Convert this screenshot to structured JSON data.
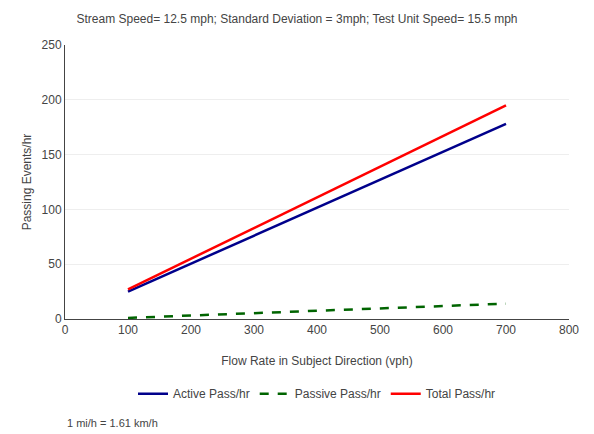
{
  "chart_data": {
    "type": "line",
    "title": "Stream Speed= 12.5 mph; Standard Deviation = 3mph; Test Unit Speed= 15.5 mph",
    "x_label": "Flow Rate in Subject Direction (vph)",
    "y_label": "Passing Events/hr",
    "xlim": [
      0,
      800
    ],
    "ylim": [
      0,
      250
    ],
    "xticks": [
      0,
      100,
      200,
      300,
      400,
      500,
      600,
      700,
      800
    ],
    "yticks": [
      0,
      50,
      100,
      150,
      200,
      250
    ],
    "grid": "y",
    "legend": "bottom",
    "annotations": [
      "1 mi/h = 1.61 km/h"
    ],
    "series": [
      {
        "name": "Active Pass/hr",
        "color": "#00008B",
        "line_style": "solid",
        "x": [
          100,
          700
        ],
        "values": [
          25,
          178
        ]
      },
      {
        "name": "Passive Pass/hr",
        "color": "#006400",
        "line_style": "dashed",
        "x": [
          100,
          700
        ],
        "values": [
          1,
          14
        ]
      },
      {
        "name": "Total Pass/hr",
        "color": "#FF0000",
        "line_style": "solid",
        "x": [
          100,
          700
        ],
        "values": [
          27,
          195
        ]
      }
    ]
  }
}
